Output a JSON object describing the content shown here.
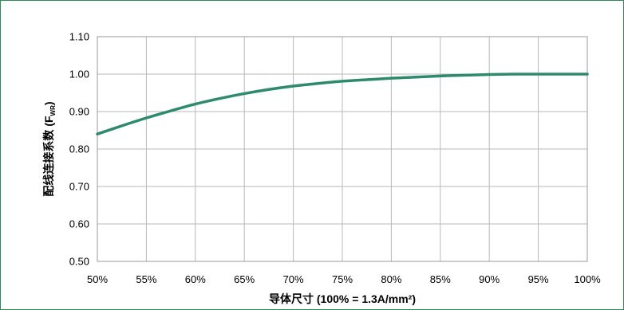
{
  "chart_data": {
    "type": "line",
    "xlabel": "导体尺寸 (100% = 1.3A/mm²)",
    "ylabel": "配线连接系数 (F",
    "ylabel_subscript": "WR",
    "ylabel_close": ")",
    "xlim": [
      50,
      100
    ],
    "ylim": [
      0.5,
      1.1
    ],
    "x_ticks": [
      50,
      55,
      60,
      65,
      70,
      75,
      80,
      85,
      90,
      95,
      100
    ],
    "x_tick_labels": [
      "50%",
      "55%",
      "60%",
      "65%",
      "70%",
      "75%",
      "80%",
      "85%",
      "90%",
      "95%",
      "100%"
    ],
    "y_ticks": [
      0.5,
      0.6,
      0.7,
      0.8,
      0.9,
      1.0,
      1.1
    ],
    "y_tick_labels": [
      "0.50",
      "0.60",
      "0.70",
      "0.80",
      "0.90",
      "1.00",
      "1.10"
    ],
    "grid": true,
    "line_color": "#2e8b6a",
    "series": [
      {
        "x": [
          50,
          52.5,
          55,
          57.5,
          60,
          62.5,
          65,
          67.5,
          70,
          72.5,
          75,
          77.5,
          80,
          82.5,
          85,
          87.5,
          90,
          92.5,
          95,
          97.5,
          100
        ],
        "values": [
          0.84,
          0.862,
          0.883,
          0.902,
          0.92,
          0.935,
          0.948,
          0.959,
          0.968,
          0.975,
          0.981,
          0.985,
          0.989,
          0.992,
          0.995,
          0.997,
          0.999,
          1.0,
          1.0,
          1.0,
          1.0
        ]
      }
    ]
  }
}
